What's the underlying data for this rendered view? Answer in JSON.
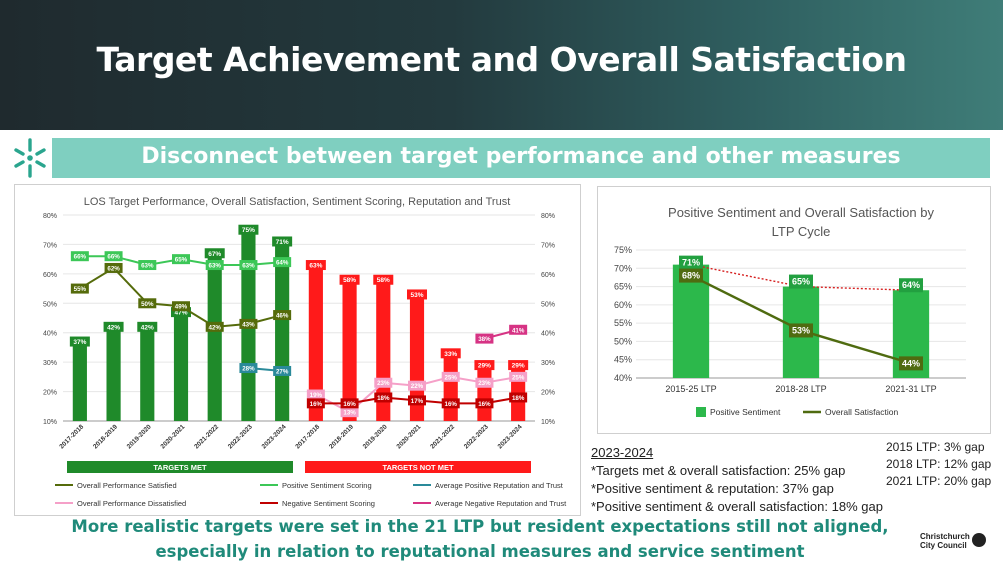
{
  "title": "Target Achievement and Overall Satisfaction",
  "subtitle": "Disconnect between target performance and other measures",
  "colors": {
    "green": "#1f8a2a",
    "red": "#ff1a1a",
    "olive": "#556b0b",
    "lightgreen": "#3cc757",
    "pink": "#f5a0c8",
    "darkred": "#c00000",
    "teal": "#2a8a9a",
    "magenta": "#d63384"
  },
  "chart_data": [
    {
      "type": "bar",
      "title": "LOS Target Performance, Overall Satisfaction, Sentiment Scoring, Reputation and Trust",
      "categories": [
        "2017-2018",
        "2018-2019",
        "2019-2020",
        "2020-2021",
        "2021-2022",
        "2022-2023",
        "2023-2024",
        "2017-2018",
        "2018-2019",
        "2019-2020",
        "2020-2021",
        "2021-2022",
        "2022-2023",
        "2023-2024"
      ],
      "ylim": [
        10,
        80
      ],
      "yticks": [
        "10%",
        "20%",
        "30%",
        "40%",
        "50%",
        "60%",
        "70%",
        "80%"
      ],
      "bars": [
        37,
        42,
        42,
        47,
        67,
        75,
        71,
        63,
        58,
        58,
        53,
        33,
        29,
        29
      ],
      "bar_labels": [
        "37%",
        "42%",
        "42%",
        "47%",
        "67%",
        "75%",
        "71%",
        "63%",
        "58%",
        "58%",
        "53%",
        "33%",
        "29%",
        "29%"
      ],
      "groups": [
        {
          "label": "TARGETS MET",
          "count": 7
        },
        {
          "label": "TARGETS NOT MET",
          "count": 7
        }
      ],
      "series": [
        {
          "name": "Overall Performance Satisfied",
          "values": [
            55,
            62,
            50,
            49,
            42,
            43,
            46,
            null,
            null,
            null,
            null,
            null,
            null,
            null
          ],
          "labels": [
            "55%",
            "62%",
            "50%",
            "49%",
            "42%",
            "43%",
            "46%"
          ]
        },
        {
          "name": "Positive Sentiment Scoring",
          "values": [
            66,
            66,
            63,
            65,
            63,
            63,
            64,
            null,
            null,
            null,
            null,
            null,
            null,
            null
          ],
          "labels": [
            "66%",
            "66%",
            "63%",
            "65%",
            "63%",
            "63%",
            "64%"
          ]
        },
        {
          "name": "Average Positive Reputation and Trust",
          "values": [
            null,
            null,
            null,
            null,
            null,
            28,
            27,
            null,
            null,
            null,
            null,
            null,
            null,
            null
          ],
          "labels": [
            "28%",
            "27%"
          ]
        },
        {
          "name": "Overall Performance Dissatisfied",
          "values": [
            null,
            null,
            null,
            null,
            null,
            null,
            null,
            19,
            13,
            23,
            22,
            25,
            23,
            25
          ],
          "labels": [
            "19%",
            "13%",
            "23%",
            "22%",
            "25%",
            "23%",
            "25%"
          ]
        },
        {
          "name": "Negative Sentiment Scoring",
          "values": [
            null,
            null,
            null,
            null,
            null,
            null,
            null,
            16,
            16,
            18,
            17,
            16,
            16,
            18
          ],
          "labels": [
            "16%",
            "16%",
            "18%",
            "17%",
            "16%",
            "16%",
            "18%"
          ]
        },
        {
          "name": "Average Negative Reputation and Trust",
          "values": [
            null,
            null,
            null,
            null,
            null,
            null,
            null,
            null,
            null,
            null,
            null,
            null,
            38,
            41
          ],
          "labels": [
            "38%",
            "41%"
          ]
        }
      ],
      "legend": [
        "Overall Performance Satisfied",
        "Positive Sentiment Scoring",
        "Average Positive Reputation and Trust",
        "Overall Performance Dissatisfied",
        "Negative Sentiment Scoring",
        "Average Negative Reputation and Trust"
      ]
    },
    {
      "type": "bar",
      "title": "Positive Sentiment and Overall Satisfaction by LTP Cycle",
      "categories": [
        "2015-25 LTP",
        "2018-28 LTP",
        "2021-31 LTP"
      ],
      "ylim": [
        40,
        75
      ],
      "yticks": [
        "40%",
        "45%",
        "50%",
        "55%",
        "60%",
        "65%",
        "70%",
        "75%"
      ],
      "series": [
        {
          "name": "Positive Sentiment",
          "values": [
            71,
            65,
            64
          ],
          "labels": [
            "71%",
            "65%",
            "64%"
          ]
        },
        {
          "name": "Overall Satisfaction",
          "values": [
            68,
            53,
            44
          ],
          "labels": [
            "68%",
            "53%",
            "44%"
          ]
        }
      ]
    }
  ],
  "notes": {
    "header": "2023-2024",
    "lines": [
      "*Targets met & overall satisfaction: 25% gap",
      "*Positive sentiment & reputation: 37% gap",
      "*Positive sentiment & overall satisfaction: 18% gap"
    ]
  },
  "gaps": [
    "2015 LTP: 3% gap",
    "2018 LTP: 12% gap",
    "2021 LTP: 20% gap"
  ],
  "footer": [
    "More realistic targets were set in the 21 LTP but resident expectations still not aligned,",
    "especially in relation to reputational measures and service sentiment"
  ],
  "council": [
    "Christchurch",
    "City Council"
  ]
}
